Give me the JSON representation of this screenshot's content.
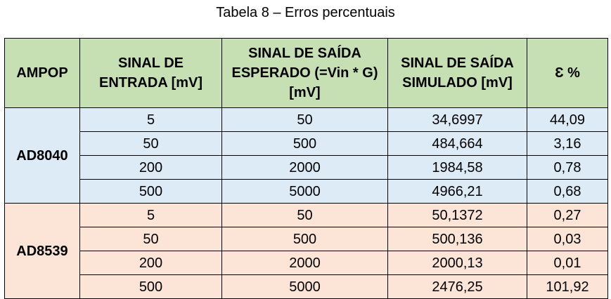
{
  "caption": "Tabela 8 – Erros percentuais",
  "headers": [
    "AMPOP",
    "SINAL DE\nENTRADA [mV]",
    "SINAL DE SAÍDA\nESPERADO (=Vin * G)\n[mV]",
    "SINAL DE SAÍDA\nSIMULADO [mV]",
    "Ɛ %"
  ],
  "groups": [
    {
      "ampop": "AD8040",
      "rows": [
        [
          "5",
          "50",
          "34,6997",
          "44,09"
        ],
        [
          "50",
          "500",
          "484,664",
          "3,16"
        ],
        [
          "200",
          "2000",
          "1984,58",
          "0,78"
        ],
        [
          "500",
          "5000",
          "4966,21",
          "0,68"
        ]
      ]
    },
    {
      "ampop": "AD8539",
      "rows": [
        [
          "5",
          "50",
          "50,1372",
          "0,27"
        ],
        [
          "50",
          "500",
          "500,136",
          "0,03"
        ],
        [
          "200",
          "2000",
          "2000,13",
          "0,01"
        ],
        [
          "500",
          "5000",
          "2476,25",
          "101,92"
        ]
      ]
    }
  ],
  "colors": {
    "header_bg": "#c6e0b4",
    "group_bg": [
      "#ddebf7",
      "#fce4d6"
    ]
  }
}
